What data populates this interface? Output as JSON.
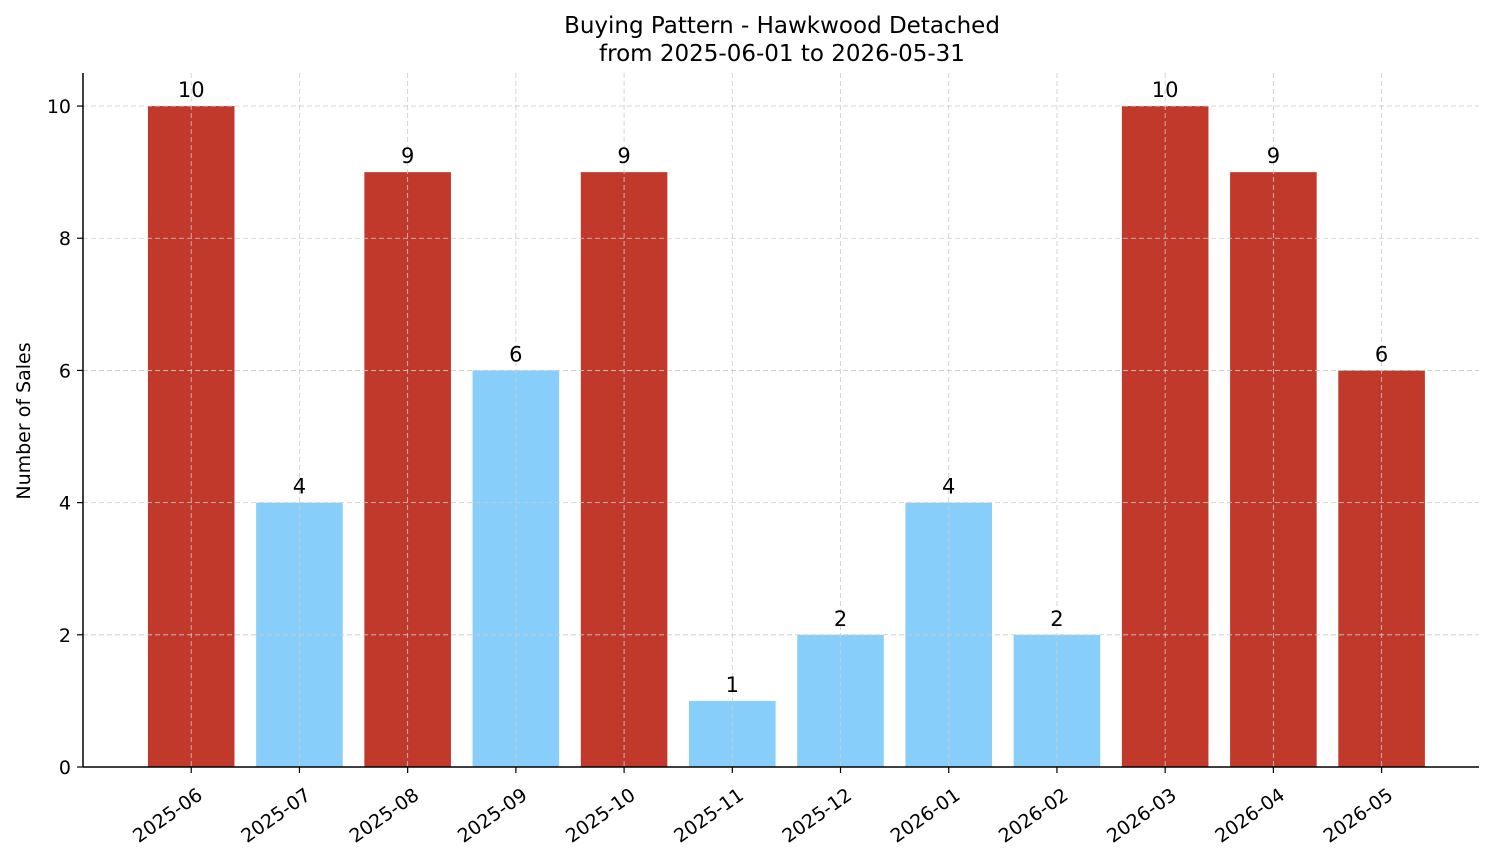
{
  "chart_data": {
    "type": "bar",
    "title": "Buying Pattern - Hawkwood Detached",
    "subtitle": "from 2025-06-01 to 2026-05-31",
    "xlabel": "",
    "ylabel": "Number of Sales",
    "categories": [
      "2025-06",
      "2025-07",
      "2025-08",
      "2025-09",
      "2025-10",
      "2025-11",
      "2025-12",
      "2026-01",
      "2026-02",
      "2026-03",
      "2026-04",
      "2026-05"
    ],
    "values": [
      10,
      4,
      9,
      6,
      9,
      1,
      2,
      4,
      2,
      10,
      9,
      6
    ],
    "bar_colors": [
      "#c0392b",
      "#87cefa",
      "#c0392b",
      "#87cefa",
      "#c0392b",
      "#87cefa",
      "#87cefa",
      "#87cefa",
      "#87cefa",
      "#c0392b",
      "#c0392b",
      "#c0392b"
    ],
    "ylim": [
      0,
      10.5
    ],
    "yticks": [
      0,
      2,
      4,
      6,
      8,
      10
    ],
    "grid": true,
    "legend": "none"
  }
}
